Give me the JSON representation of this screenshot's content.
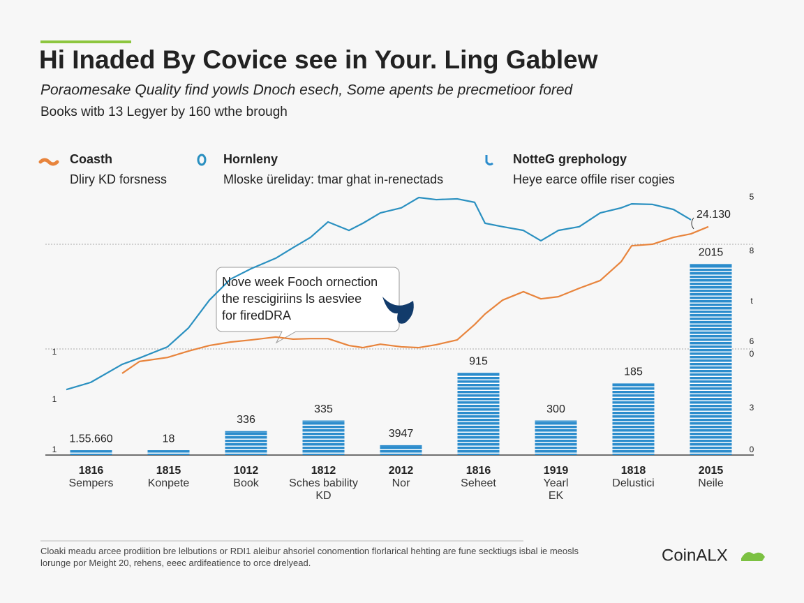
{
  "chart_data": {
    "type": "bar",
    "title": "Hi Inaded By Covice see in Your. Ling Gablew",
    "subtitle": "Poraomesake Quality find yowls Dnoch esech, Some apents be precmetioor fored",
    "note": "Books witb 13 Legyer by 160 wthe brough",
    "categories": [
      "1816",
      "1815",
      "1012",
      "1812",
      "2012",
      "1816",
      "1919",
      "1818",
      "2015"
    ],
    "category_names": [
      "Sempers",
      "Konpete",
      "Book",
      "Sches bability\nKD",
      "Nor",
      "Seheet",
      "Yearl\nEK",
      "Delustici",
      "Neile"
    ],
    "bar_labels": [
      "1.55.660",
      "18",
      "336",
      "335",
      "3947",
      "915",
      "300",
      "185",
      "2015"
    ],
    "x": [
      1.5,
      5,
      9.5,
      12,
      16,
      19,
      22,
      25,
      28,
      31.5,
      34,
      36.5,
      39,
      42,
      44,
      46.5,
      49.5,
      52,
      54.5,
      57.5,
      60,
      61.5,
      64,
      67,
      69.5,
      72,
      75,
      78,
      81,
      82.5,
      85.5,
      88.5,
      91,
      93.5
    ],
    "series": [
      {
        "name": "Coasth",
        "description": "Dliry KD forsness",
        "type": "line",
        "color": "#e8843c",
        "values": [
          null,
          null,
          30.8,
          35.3,
          36.8,
          39.2,
          41.3,
          42.6,
          43.4,
          44.5,
          43.7,
          43.9,
          43.9,
          41.3,
          40.5,
          41.8,
          40.8,
          40.5,
          41.6,
          43.4,
          49.2,
          53.2,
          58.4,
          61.6,
          58.9,
          59.7,
          62.9,
          65.8,
          72.9,
          78.9,
          79.5,
          82.1,
          83.4,
          86.1
        ]
      },
      {
        "name": "Hornleny",
        "description": "Mloske üreliday: tmar ghat in-renectads",
        "type": "line",
        "color": "#2a90c0",
        "values": [
          24.7,
          27.4,
          34.2,
          36.6,
          40.8,
          47.9,
          58.4,
          66.3,
          70.3,
          74.2,
          78.2,
          82.1,
          87.9,
          84.7,
          87.4,
          91.3,
          93.2,
          97.1,
          96.3,
          96.6,
          95.3,
          87.4,
          86.1,
          84.7,
          80.8,
          84.7,
          86.1,
          91.3,
          93.2,
          94.7,
          94.5,
          92.6,
          88.7,
          null
        ]
      },
      {
        "name": "NotteG grephology",
        "description": "Heye earce offile riser cogies",
        "type": "bar",
        "color": "#2b8ccc",
        "values": [
          1.8,
          1.8,
          9,
          13,
          3.7,
          31,
          13,
          27,
          72
        ]
      }
    ],
    "xlim": [
      0,
      100
    ],
    "ylim": [
      0,
      100
    ],
    "left_axis_labels": [
      "1",
      "1",
      "1"
    ],
    "right_axis_labels": [
      "5",
      "8",
      "t",
      "6",
      "0",
      "3",
      "0"
    ],
    "annotations": [
      "Nove week Fooch ornection\nthe rescigiriins ls aesviee\nfor firedDRA",
      "24.130"
    ]
  },
  "footer": {
    "text": "Cloaki meadu arcee prodiition bre lelbutions or RDI1 aleibur ahsoriel conomention florlarical hehting are fune secktiugs isbal ie meosls\nlorunge por Meight 20, rehens, eeec ardifeatience to orce drelyead.",
    "logo": "CoinALX"
  }
}
